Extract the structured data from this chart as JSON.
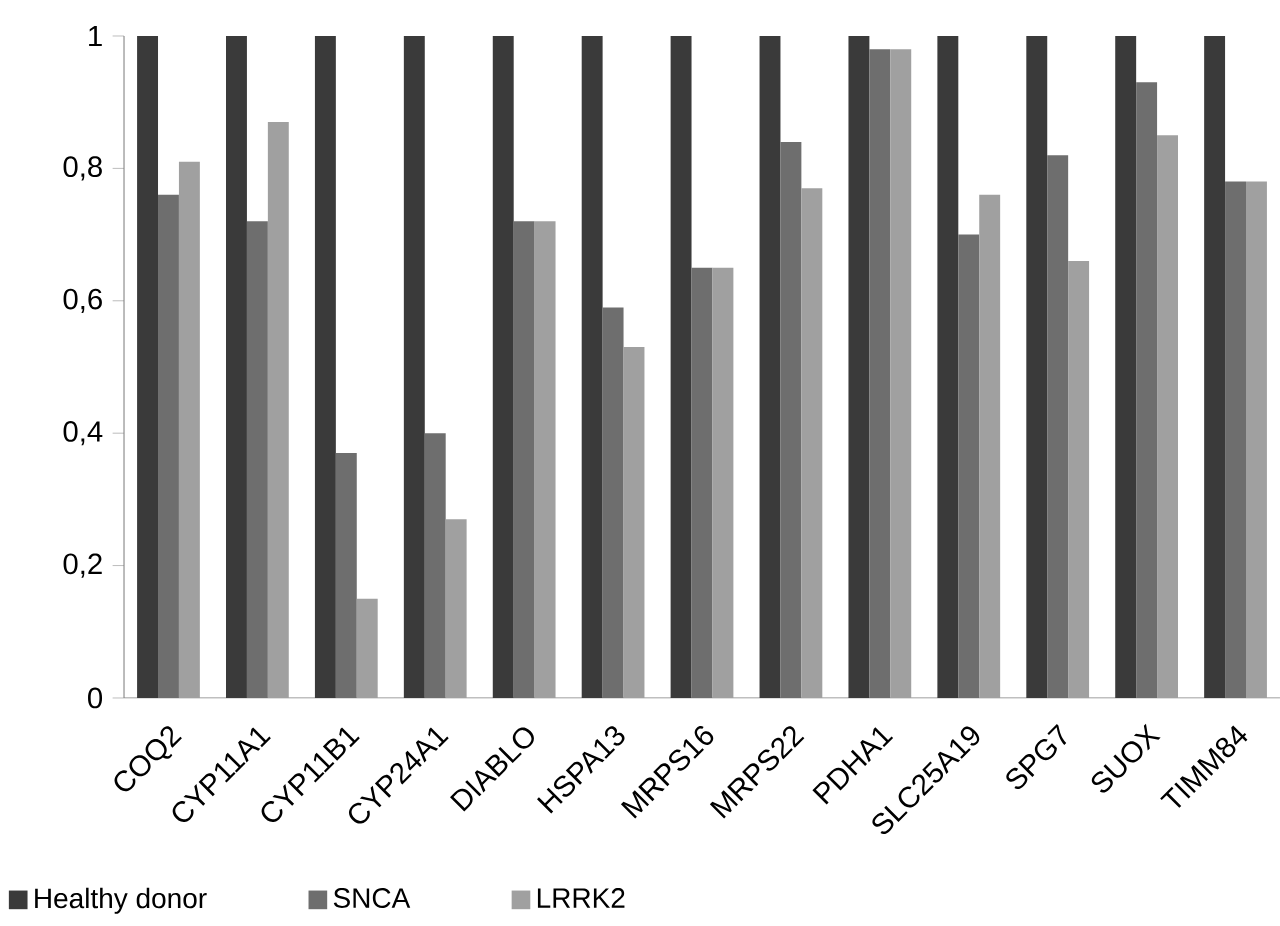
{
  "chart_data": {
    "type": "bar",
    "categories": [
      "COQ2",
      "CYP11A1",
      "CYP11B1",
      "CYP24A1",
      "DIABLO",
      "HSPA13",
      "MRPS16",
      "MRPS22",
      "PDHA1",
      "SLC25A19",
      "SPG7",
      "SUOX",
      "TIMM84"
    ],
    "series": [
      {
        "name": "Healthy donor",
        "color": "#3a3a3a",
        "values": [
          1,
          1,
          1,
          1,
          1,
          1,
          1,
          1,
          1,
          1,
          1,
          1,
          1
        ]
      },
      {
        "name": "SNCA",
        "color": "#6e6e6e",
        "values": [
          0.76,
          0.72,
          0.37,
          0.4,
          0.72,
          0.59,
          0.65,
          0.84,
          0.98,
          0.7,
          0.82,
          0.93,
          0.78
        ]
      },
      {
        "name": "LRRK2",
        "color": "#a0a0a0",
        "values": [
          0.81,
          0.87,
          0.15,
          0.27,
          0.72,
          0.53,
          0.65,
          0.77,
          0.98,
          0.76,
          0.66,
          0.85,
          0.78
        ]
      }
    ],
    "ylim": [
      0,
      1
    ],
    "yticks": [
      0,
      {
        "value": 0.2,
        "label": "0,2"
      },
      {
        "value": 0.4,
        "label": "0,4"
      },
      {
        "value": 0.6,
        "label": "0,6"
      },
      {
        "value": 0.8,
        "label": "0,8"
      },
      1
    ],
    "legend": "bottom left"
  }
}
